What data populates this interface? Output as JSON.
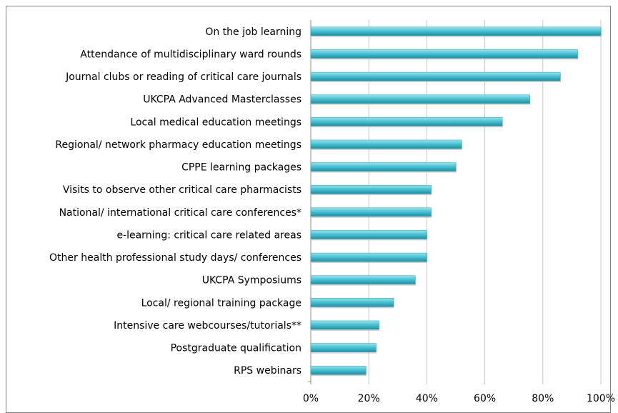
{
  "chart_data": {
    "type": "bar",
    "orientation": "horizontal",
    "categories": [
      "On the job learning",
      "Attendance of multidisciplinary ward rounds",
      "Journal clubs or reading of critical care journals",
      "UKCPA Advanced Masterclasses",
      "Local medical education meetings",
      "Regional/ network pharmacy education meetings",
      "CPPE learning packages",
      "Visits to observe other critical care pharmacists",
      "National/ international critical care conferences*",
      "e-learning: critical care related areas",
      "Other health professional study days/ conferences",
      "UKCPA Symposiums",
      "Local/ regional training package",
      "Intensive care webcourses/tutorials**",
      "Postgraduate qualification",
      "RPS webinars"
    ],
    "values": [
      100,
      92,
      86,
      75.5,
      66,
      52,
      50,
      41.5,
      41.5,
      40,
      40,
      36,
      28.5,
      23.5,
      22.5,
      19
    ],
    "xlim": [
      0,
      100
    ],
    "xticks": [
      "0%",
      "20%",
      "40%",
      "60%",
      "80%",
      "100%"
    ],
    "grid": true,
    "legend": false,
    "title": "",
    "xlabel": "",
    "ylabel": "",
    "bar_color": "#4bc3d5"
  }
}
